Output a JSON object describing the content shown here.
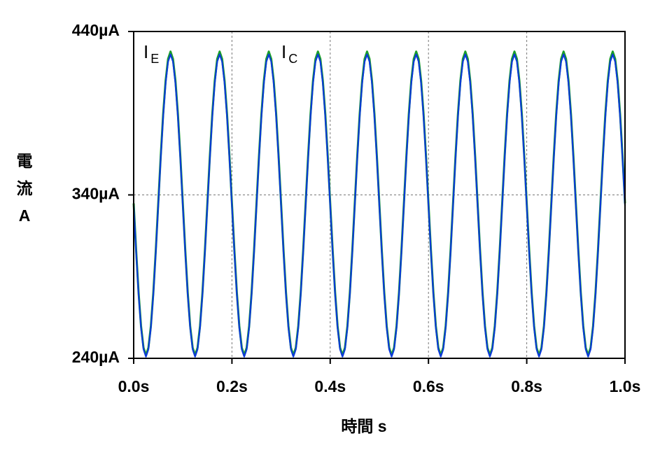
{
  "chart_data": {
    "type": "line",
    "x_label": "時間 s",
    "y_label": "電流 A",
    "xlim": [
      0,
      1.0
    ],
    "ylim": [
      240,
      440
    ],
    "xticks": [
      {
        "value": 0,
        "label": "0.0s"
      },
      {
        "value": 0.2,
        "label": "0.2s"
      },
      {
        "value": 0.4,
        "label": "0.4s"
      },
      {
        "value": 0.6,
        "label": "0.6s"
      },
      {
        "value": 0.8,
        "label": "0.8s"
      },
      {
        "value": 1.0,
        "label": "1.0s"
      }
    ],
    "yticks": [
      {
        "value": 240,
        "label": "240µA"
      },
      {
        "value": 340,
        "label": "340µA"
      },
      {
        "value": 440,
        "label": "440µA"
      }
    ],
    "grid": true,
    "x": [
      0,
      0.005,
      0.01,
      0.015,
      0.02,
      0.025,
      0.03,
      0.035,
      0.04,
      0.045,
      0.05,
      0.055,
      0.06,
      0.065,
      0.07,
      0.075,
      0.08,
      0.085,
      0.09,
      0.095,
      0.1,
      0.105,
      0.11,
      0.115,
      0.12,
      0.125,
      0.13,
      0.135,
      0.14,
      0.145,
      0.15,
      0.155,
      0.16,
      0.165,
      0.17,
      0.175,
      0.18,
      0.185,
      0.19,
      0.195,
      0.2,
      0.205,
      0.21,
      0.215,
      0.22,
      0.225,
      0.23,
      0.235,
      0.24,
      0.245,
      0.25,
      0.255,
      0.26,
      0.265,
      0.27,
      0.275,
      0.28,
      0.285,
      0.29,
      0.295,
      0.3,
      0.305,
      0.31,
      0.315,
      0.32,
      0.325,
      0.33,
      0.335,
      0.34,
      0.345,
      0.35,
      0.355,
      0.36,
      0.365,
      0.37,
      0.375,
      0.38,
      0.385,
      0.39,
      0.395,
      0.4,
      0.405,
      0.41,
      0.415,
      0.42,
      0.425,
      0.43,
      0.435,
      0.44,
      0.445,
      0.45,
      0.455,
      0.46,
      0.465,
      0.47,
      0.475,
      0.48,
      0.485,
      0.49,
      0.495,
      0.5,
      0.505,
      0.51,
      0.515,
      0.52,
      0.525,
      0.53,
      0.535,
      0.54,
      0.545,
      0.55,
      0.555,
      0.56,
      0.565,
      0.57,
      0.575,
      0.58,
      0.585,
      0.59,
      0.595,
      0.6,
      0.605,
      0.61,
      0.615,
      0.62,
      0.625,
      0.63,
      0.635,
      0.64,
      0.645,
      0.65,
      0.655,
      0.66,
      0.665,
      0.67,
      0.675,
      0.68,
      0.685,
      0.69,
      0.695,
      0.7,
      0.705,
      0.71,
      0.715,
      0.72,
      0.725,
      0.73,
      0.735,
      0.74,
      0.745,
      0.75,
      0.755,
      0.76,
      0.765,
      0.77,
      0.775,
      0.78,
      0.785,
      0.79,
      0.795,
      0.8,
      0.805,
      0.81,
      0.815,
      0.82,
      0.825,
      0.83,
      0.835,
      0.84,
      0.845,
      0.85,
      0.855,
      0.86,
      0.865,
      0.87,
      0.875,
      0.88,
      0.885,
      0.89,
      0.895,
      0.9,
      0.905,
      0.91,
      0.915,
      0.92,
      0.925,
      0.93,
      0.935,
      0.94,
      0.945,
      0.95,
      0.955,
      0.96,
      0.965,
      0.97,
      0.975,
      0.98,
      0.985,
      0.99,
      0.995,
      1.0
    ],
    "series": [
      {
        "name": "IE",
        "color": "#1a9e2a",
        "values": [
          334.8,
          306.1,
          280.2,
          259.7,
          246.5,
          242,
          246.5,
          259.7,
          280.2,
          306.1,
          334.8,
          363.5,
          389.5,
          409.9,
          423.2,
          427.7,
          423.2,
          409.9,
          389.5,
          363.5,
          334.8,
          306.1,
          280.2,
          259.7,
          246.5,
          242,
          246.5,
          259.7,
          280.2,
          306.1,
          334.8,
          363.5,
          389.5,
          409.9,
          423.2,
          427.7,
          423.2,
          409.9,
          389.5,
          363.5,
          334.8,
          306.1,
          280.2,
          259.7,
          246.5,
          242,
          246.5,
          259.7,
          280.2,
          306.1,
          334.8,
          363.5,
          389.5,
          409.9,
          423.2,
          427.7,
          423.2,
          409.9,
          389.5,
          363.5,
          334.8,
          306.1,
          280.2,
          259.7,
          246.5,
          242,
          246.5,
          259.7,
          280.2,
          306.1,
          334.8,
          363.5,
          389.5,
          409.9,
          423.2,
          427.7,
          423.2,
          409.9,
          389.5,
          363.5,
          334.8,
          306.1,
          280.2,
          259.7,
          246.5,
          242,
          246.5,
          259.7,
          280.2,
          306.1,
          334.8,
          363.5,
          389.5,
          409.9,
          423.2,
          427.7,
          423.2,
          409.9,
          389.5,
          363.5,
          334.8,
          306.1,
          280.2,
          259.7,
          246.5,
          242,
          246.5,
          259.7,
          280.2,
          306.1,
          334.8,
          363.5,
          389.5,
          409.9,
          423.2,
          427.7,
          423.2,
          409.9,
          389.5,
          363.5,
          334.8,
          306.1,
          280.2,
          259.7,
          246.5,
          242,
          246.5,
          259.7,
          280.2,
          306.1,
          334.8,
          363.5,
          389.5,
          409.9,
          423.2,
          427.7,
          423.2,
          409.9,
          389.5,
          363.5,
          334.8,
          306.1,
          280.2,
          259.7,
          246.5,
          242,
          246.5,
          259.7,
          280.2,
          306.1,
          334.8,
          363.5,
          389.5,
          409.9,
          423.2,
          427.7,
          423.2,
          409.9,
          389.5,
          363.5,
          334.8,
          306.1,
          280.2,
          259.7,
          246.5,
          242,
          246.5,
          259.7,
          280.2,
          306.1,
          334.8,
          363.5,
          389.5,
          409.9,
          423.2,
          427.7,
          423.2,
          409.9,
          389.5,
          363.5,
          334.8,
          306.1,
          280.2,
          259.7,
          246.5,
          242,
          246.5,
          259.7,
          280.2,
          306.1,
          334.8,
          363.5,
          389.5,
          409.9,
          423.2,
          427.7,
          423.2,
          409.9,
          389.5,
          363.5,
          334.8
        ]
      },
      {
        "name": "IC",
        "color": "#0a3ad8",
        "values": [
          333.5,
          304.9,
          279.1,
          258.7,
          245.5,
          241,
          245.5,
          258.7,
          279.1,
          304.9,
          333.5,
          362.1,
          387.9,
          408.3,
          421.5,
          426,
          421.5,
          408.3,
          387.9,
          362.1,
          333.5,
          304.9,
          279.1,
          258.7,
          245.5,
          241,
          245.5,
          258.7,
          279.1,
          304.9,
          333.5,
          362.1,
          387.9,
          408.3,
          421.5,
          426,
          421.5,
          408.3,
          387.9,
          362.1,
          333.5,
          304.9,
          279.1,
          258.7,
          245.5,
          241,
          245.5,
          258.7,
          279.1,
          304.9,
          333.5,
          362.1,
          387.9,
          408.3,
          421.5,
          426,
          421.5,
          408.3,
          387.9,
          362.1,
          333.5,
          304.9,
          279.1,
          258.7,
          245.5,
          241,
          245.5,
          258.7,
          279.1,
          304.9,
          333.5,
          362.1,
          387.9,
          408.3,
          421.5,
          426,
          421.5,
          408.3,
          387.9,
          362.1,
          333.5,
          304.9,
          279.1,
          258.7,
          245.5,
          241,
          245.5,
          258.7,
          279.1,
          304.9,
          333.5,
          362.1,
          387.9,
          408.3,
          421.5,
          426,
          421.5,
          408.3,
          387.9,
          362.1,
          333.5,
          304.9,
          279.1,
          258.7,
          245.5,
          241,
          245.5,
          258.7,
          279.1,
          304.9,
          333.5,
          362.1,
          387.9,
          408.3,
          421.5,
          426,
          421.5,
          408.3,
          387.9,
          362.1,
          333.5,
          304.9,
          279.1,
          258.7,
          245.5,
          241,
          245.5,
          258.7,
          279.1,
          304.9,
          333.5,
          362.1,
          387.9,
          408.3,
          421.5,
          426,
          421.5,
          408.3,
          387.9,
          362.1,
          333.5,
          304.9,
          279.1,
          258.7,
          245.5,
          241,
          245.5,
          258.7,
          279.1,
          304.9,
          333.5,
          362.1,
          387.9,
          408.3,
          421.5,
          426,
          421.5,
          408.3,
          387.9,
          362.1,
          333.5,
          304.9,
          279.1,
          258.7,
          245.5,
          241,
          245.5,
          258.7,
          279.1,
          304.9,
          333.5,
          362.1,
          387.9,
          408.3,
          421.5,
          426,
          421.5,
          408.3,
          387.9,
          362.1,
          333.5,
          304.9,
          279.1,
          258.7,
          245.5,
          241,
          245.5,
          258.7,
          279.1,
          304.9,
          333.5,
          362.1,
          387.9,
          408.3,
          421.5,
          426,
          421.5,
          408.3,
          387.9,
          362.1,
          333.5
        ]
      }
    ]
  }
}
